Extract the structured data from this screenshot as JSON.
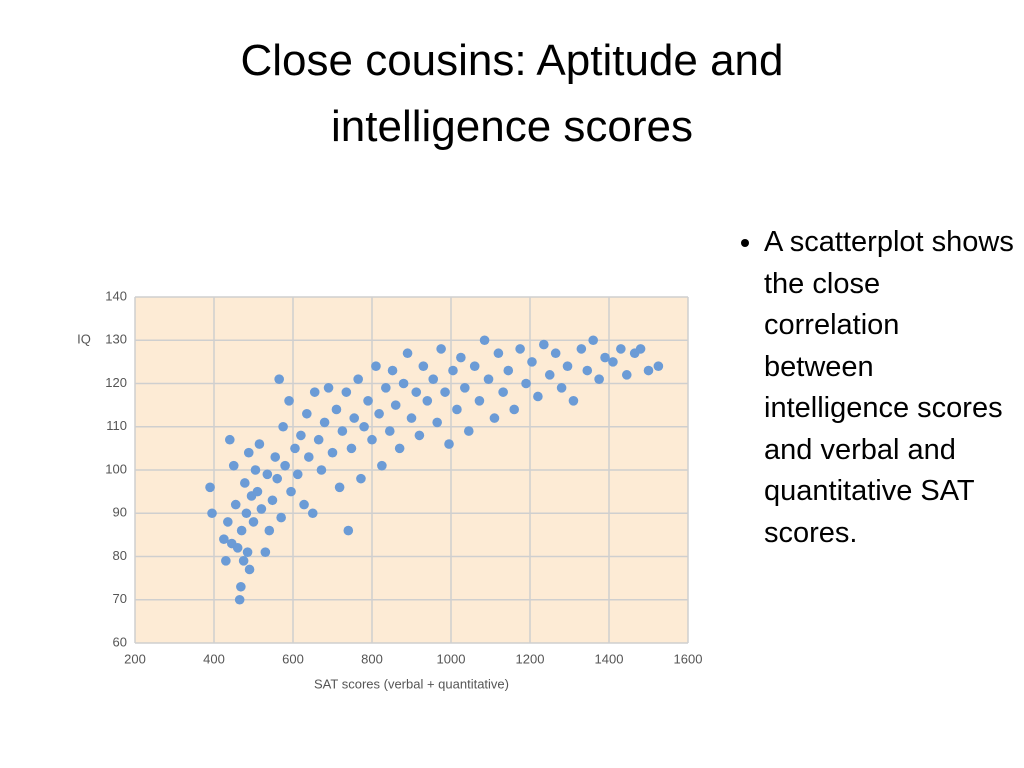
{
  "title": "Close cousins: Aptitude and intelligence scores",
  "bullets": [
    "A scatterplot shows the close correlation between intelligence scores and verbal and quantitative SAT scores."
  ],
  "chart_data": {
    "type": "scatter",
    "xlabel": "SAT scores (verbal + quantitative)",
    "ylabel": "IQ",
    "xlim": [
      200,
      1600
    ],
    "ylim": [
      60,
      140
    ],
    "xticks": [
      200,
      400,
      600,
      800,
      1000,
      1200,
      1400,
      1600
    ],
    "yticks": [
      60,
      70,
      80,
      90,
      100,
      110,
      120,
      130,
      140
    ],
    "grid": true,
    "color": "#6b9bd6",
    "background": "#fdebd5",
    "x": [
      390,
      395,
      425,
      430,
      435,
      440,
      445,
      450,
      455,
      460,
      465,
      468,
      470,
      475,
      478,
      482,
      485,
      488,
      490,
      495,
      500,
      505,
      510,
      515,
      520,
      530,
      535,
      540,
      548,
      555,
      560,
      565,
      570,
      575,
      580,
      590,
      595,
      605,
      612,
      620,
      628,
      635,
      640,
      650,
      655,
      665,
      672,
      680,
      690,
      700,
      710,
      718,
      725,
      735,
      740,
      748,
      755,
      765,
      772,
      780,
      790,
      800,
      810,
      818,
      825,
      835,
      845,
      852,
      860,
      870,
      880,
      890,
      900,
      912,
      920,
      930,
      940,
      955,
      965,
      975,
      985,
      995,
      1005,
      1015,
      1025,
      1035,
      1045,
      1060,
      1072,
      1085,
      1095,
      1110,
      1120,
      1132,
      1145,
      1160,
      1175,
      1190,
      1205,
      1220,
      1235,
      1250,
      1265,
      1280,
      1295,
      1310,
      1330,
      1345,
      1360,
      1375,
      1390,
      1410,
      1430,
      1445,
      1465,
      1480,
      1500,
      1525
    ],
    "values": [
      96,
      90,
      84,
      79,
      88,
      107,
      83,
      101,
      92,
      82,
      70,
      73,
      86,
      79,
      97,
      90,
      81,
      104,
      77,
      94,
      88,
      100,
      95,
      106,
      91,
      81,
      99,
      86,
      93,
      103,
      98,
      121,
      89,
      110,
      101,
      116,
      95,
      105,
      99,
      108,
      92,
      113,
      103,
      90,
      118,
      107,
      100,
      111,
      119,
      104,
      114,
      96,
      109,
      118,
      86,
      105,
      112,
      121,
      98,
      110,
      116,
      107,
      124,
      113,
      101,
      119,
      109,
      123,
      115,
      105,
      120,
      127,
      112,
      118,
      108,
      124,
      116,
      121,
      111,
      128,
      118,
      106,
      123,
      114,
      126,
      119,
      109,
      124,
      116,
      130,
      121,
      112,
      127,
      118,
      123,
      114,
      128,
      120,
      125,
      117,
      129,
      122,
      127,
      119,
      124,
      116,
      128,
      123,
      130,
      121,
      126,
      125,
      128,
      122,
      127,
      128,
      123,
      124
    ]
  }
}
